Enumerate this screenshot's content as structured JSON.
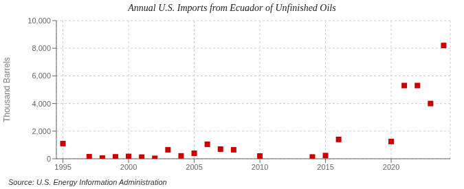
{
  "chart_data": {
    "type": "scatter",
    "title": "Annual U.S. Imports from Ecuador of Unfinished Oils",
    "ylabel": "Thousand Barrels",
    "annotations": [
      "Source: U.S. Energy Information Administration"
    ],
    "x": [
      1995,
      1997,
      1998,
      1999,
      2000,
      2001,
      2002,
      2003,
      2004,
      2005,
      2006,
      2007,
      2008,
      2010,
      2014,
      2015,
      2016,
      2020,
      2021,
      2022,
      2023,
      2024
    ],
    "values": [
      1100,
      150,
      50,
      140,
      170,
      120,
      30,
      650,
      210,
      400,
      1050,
      700,
      650,
      200,
      130,
      230,
      1400,
      1250,
      5300,
      5300,
      4000,
      8200
    ],
    "color": "#cc0000",
    "marker": "square",
    "xlim": [
      1994.5,
      2024.5
    ],
    "xticks": [
      1995,
      2000,
      2005,
      2010,
      2015,
      2020
    ],
    "ylim": [
      0,
      10000
    ],
    "yticks": [
      0,
      {
        "value": 2000,
        "label": "2,000"
      },
      {
        "value": 4000,
        "label": "4,000"
      },
      {
        "value": 6000,
        "label": "6,000"
      },
      {
        "value": 8000,
        "label": "8,000"
      },
      {
        "value": 10000,
        "label": "10,000"
      }
    ],
    "grid": true
  }
}
